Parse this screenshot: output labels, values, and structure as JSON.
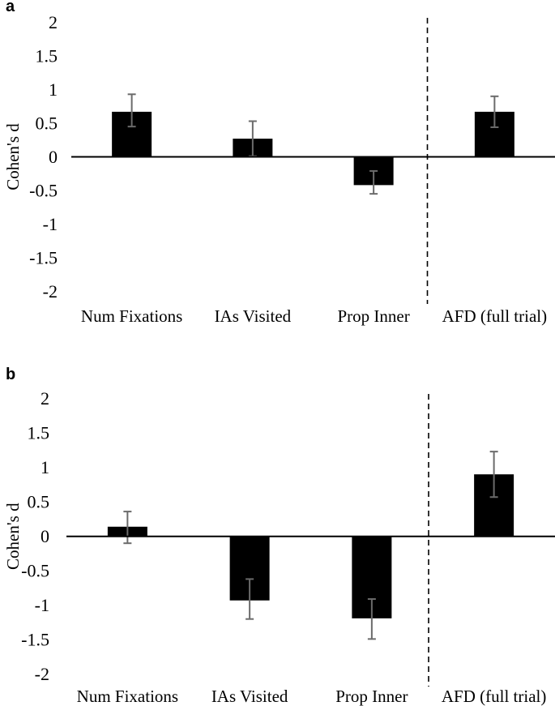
{
  "figure": {
    "colors": {
      "background": "#ffffff",
      "bar": "#000000",
      "error_bar": "#6b6b6b",
      "axis": "#000000",
      "separator": "#000000",
      "text": "#000000"
    }
  },
  "chart_data": [
    {
      "type": "bar",
      "panel_label": "a",
      "title": "",
      "xlabel": "",
      "ylabel": "Cohen's d",
      "ylim": [
        -2,
        2
      ],
      "ytick_labels": [
        "2",
        "1.5",
        "1",
        "0.5",
        "0",
        "-0.5",
        "-1",
        "-1.5",
        "-2"
      ],
      "grid": false,
      "legend": null,
      "categories": [
        "Num Fixations",
        "IAs Visited",
        "Prop Inner",
        "AFD (full trial)"
      ],
      "values": [
        0.67,
        0.27,
        -0.42,
        0.67
      ],
      "error_low": [
        0.45,
        0.01,
        -0.55,
        0.44
      ],
      "error_high": [
        0.93,
        0.53,
        -0.21,
        0.9
      ],
      "separator": "dashed vertical line between Prop Inner and AFD (full trial)"
    },
    {
      "type": "bar",
      "panel_label": "b",
      "title": "",
      "xlabel": "",
      "ylabel": "Cohen's d",
      "ylim": [
        -2,
        2
      ],
      "ytick_labels": [
        "2",
        "1.5",
        "1",
        "0.5",
        "0",
        "-0.5",
        "-1",
        "-1.5",
        "-2"
      ],
      "grid": false,
      "legend": null,
      "categories": [
        "Num Fixations",
        "IAs Visited",
        "Prop Inner",
        "AFD (full trial)"
      ],
      "values": [
        0.14,
        -0.93,
        -1.19,
        0.9
      ],
      "error_low": [
        -0.1,
        -1.2,
        -1.49,
        0.57
      ],
      "error_high": [
        0.36,
        -0.62,
        -0.91,
        1.23
      ],
      "separator": "dashed vertical line between Prop Inner and AFD (full trial)"
    }
  ]
}
